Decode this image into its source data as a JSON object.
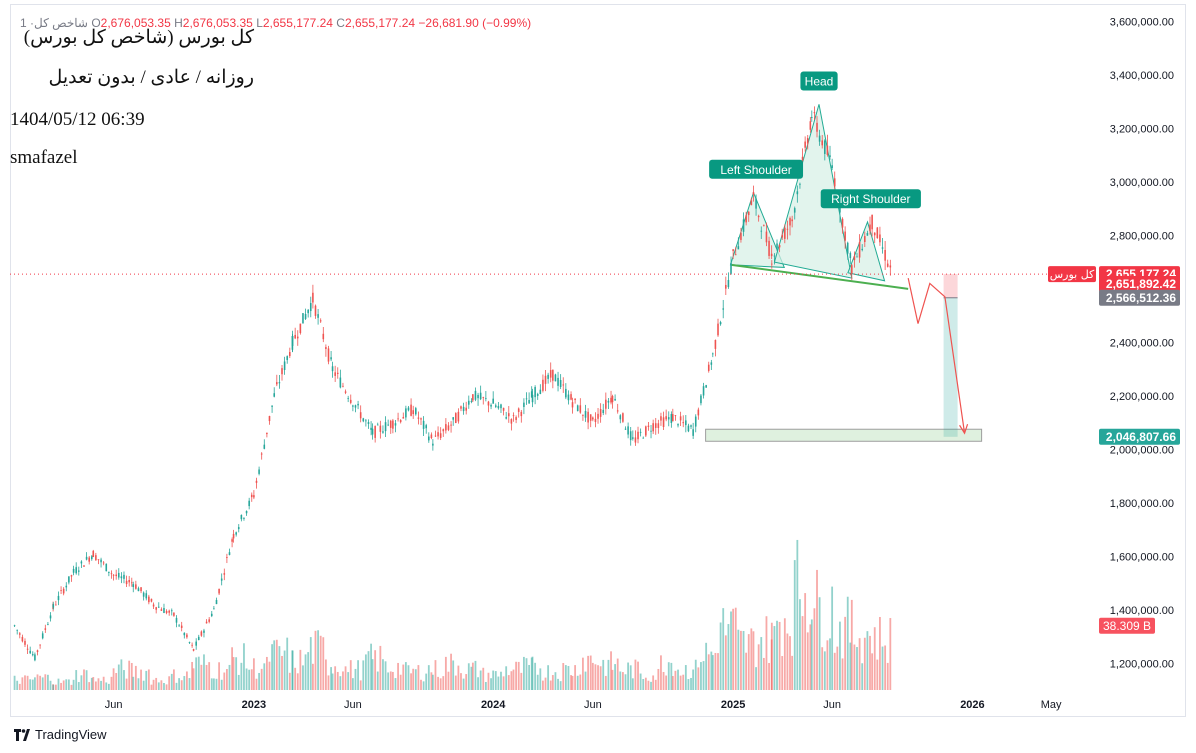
{
  "ohlc": {
    "prefix": "1 ·شاخص کل",
    "o_label": "O",
    "o": "2,676,053.35",
    "h_label": "H",
    "h": "2,676,053.35",
    "l_label": "L",
    "l": "2,655,177.24",
    "c_label": "C",
    "c": "2,655,177.24",
    "change": "−26,681.90 (−0.99%)"
  },
  "meta": {
    "title": "کل بورس (شاخص کل بورس)",
    "subtitle": "روزانه / عادی / بدون تعدیل",
    "datetime": "1404/05/12 06:39",
    "author": "smafazel"
  },
  "branding": {
    "name": "TradingView"
  },
  "colors": {
    "up": "#26a69a",
    "down": "#ef5350",
    "pattern_fill": "#d6efe5",
    "pattern_stroke": "#22ab94",
    "neckline": "#4caf50",
    "price_line": "#f23645"
  },
  "chart_data": {
    "type": "candlestick",
    "ylim": [
      1100000,
      3650000
    ],
    "yaxis_ticks": [
      "3,600,000.00",
      "3,400,000.00",
      "3,200,000.00",
      "3,000,000.00",
      "2,800,000.00",
      "2,600,000.00",
      "2,400,000.00",
      "2,200,000.00",
      "2,000,000.00",
      "1,800,000.00",
      "1,600,000.00",
      "1,400,000.00",
      "1,200,000.00"
    ],
    "yaxis_tick_values": [
      3600000,
      3400000,
      3200000,
      3000000,
      2800000,
      2600000,
      2400000,
      2200000,
      2000000,
      1800000,
      1600000,
      1400000,
      1200000
    ],
    "xaxis_ticks": [
      "Jun",
      "2023",
      "Jun",
      "2024",
      "Jun",
      "2025",
      "Jun",
      "2026",
      "May"
    ],
    "xaxis_tick_dates": [
      "2022-06",
      "2023-01",
      "2023-06",
      "2024-01",
      "2024-06",
      "2025-01",
      "2025-06",
      "2026-01",
      "2026-05"
    ],
    "price_path": [
      [
        "2022-01",
        1340000
      ],
      [
        "2022-02",
        1220000
      ],
      [
        "2022-03",
        1410000
      ],
      [
        "2022-04",
        1540000
      ],
      [
        "2022-05",
        1610000
      ],
      [
        "2022-06",
        1530000
      ],
      [
        "2022-07",
        1500000
      ],
      [
        "2022-08",
        1420000
      ],
      [
        "2022-09",
        1380000
      ],
      [
        "2022-10",
        1250000
      ],
      [
        "2022-11",
        1400000
      ],
      [
        "2022-12",
        1680000
      ],
      [
        "2023-01",
        1830000
      ],
      [
        "2023-02",
        2200000
      ],
      [
        "2023-03",
        2400000
      ],
      [
        "2023-04",
        2560000
      ],
      [
        "2023-05",
        2300000
      ],
      [
        "2023-06",
        2180000
      ],
      [
        "2023-07",
        2060000
      ],
      [
        "2023-08",
        2100000
      ],
      [
        "2023-09",
        2150000
      ],
      [
        "2023-10",
        2030000
      ],
      [
        "2023-11",
        2100000
      ],
      [
        "2023-12",
        2200000
      ],
      [
        "2024-01",
        2170000
      ],
      [
        "2024-02",
        2110000
      ],
      [
        "2024-03",
        2200000
      ],
      [
        "2024-04",
        2280000
      ],
      [
        "2024-05",
        2180000
      ],
      [
        "2024-06",
        2100000
      ],
      [
        "2024-07",
        2200000
      ],
      [
        "2024-08",
        2030000
      ],
      [
        "2024-09",
        2090000
      ],
      [
        "2024-10",
        2120000
      ],
      [
        "2024-11",
        2070000
      ],
      [
        "2024-12",
        2350000
      ],
      [
        "2025-01",
        2720000
      ],
      [
        "2025-02",
        2940000
      ],
      [
        "2025-03",
        2720000
      ],
      [
        "2025-04",
        2860000
      ],
      [
        "2025-05",
        3250000
      ],
      [
        "2025-06",
        3060000
      ],
      [
        "2025-07",
        2680000
      ],
      [
        "2025-08",
        2850000
      ],
      [
        "2025-09",
        2655177
      ]
    ],
    "volume_series": [
      0.1,
      0.12,
      0.08,
      0.15,
      0.1,
      0.2,
      0.18,
      0.1,
      0.14,
      0.25,
      0.2,
      0.3,
      0.22,
      0.35,
      0.28,
      0.4,
      0.25,
      0.2,
      0.3,
      0.22,
      0.18,
      0.2,
      0.25,
      0.2,
      0.15,
      0.2,
      0.22,
      0.18,
      0.2,
      0.3,
      0.25,
      0.2,
      0.15,
      0.28,
      0.2,
      0.35,
      0.6,
      0.45,
      0.5,
      0.7,
      1.0,
      0.8,
      0.6,
      0.55,
      0.5
    ],
    "annotations": {
      "pattern": "Head and Shoulders",
      "labels": [
        "Left Shoulder",
        "Head",
        "Right Shoulder"
      ],
      "neckline": [
        [
          "2025-01",
          2680000
        ],
        [
          "2025-09",
          2600000
        ]
      ],
      "target_zone": [
        2030000,
        2075000
      ],
      "stop_zone": [
        2555000,
        2655000
      ]
    },
    "symbol_tag": "کل بورس",
    "price_labels": [
      "2,655,177.24",
      "2,651,892.42",
      "2,566,512.36",
      "2,046,807.66"
    ],
    "price_label_values": [
      2655177.24,
      2651892.42,
      2566512.36,
      2046807.66
    ],
    "volume_label": "38.309 B"
  }
}
